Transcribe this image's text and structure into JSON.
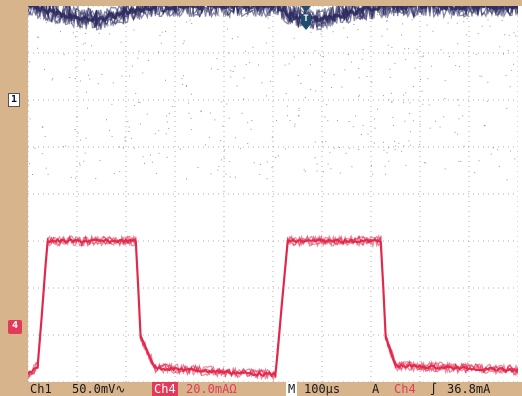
{
  "status": {
    "ch1_label": "Ch1",
    "ch1_scale": "50.0mV∿",
    "ch4_label": "Ch4",
    "ch4_scale": "20.0mAΩ",
    "timebase_label": "M",
    "timebase_value": "100µs",
    "trigger_mode": "A",
    "trigger_source": "Ch4",
    "trigger_edge": "∫",
    "trigger_level": "36.8mA"
  },
  "markers": {
    "ch1": "1",
    "ch4": "4",
    "trigger_position": "T"
  },
  "colors": {
    "ch1": "#2b2a5e",
    "ch4": "#e0264a",
    "bezel": "#d8b48c",
    "grid": "#8a8a8a"
  },
  "chart_data": {
    "type": "line",
    "grid": true,
    "divisions": {
      "horizontal": 10,
      "vertical": 8
    },
    "x_unit_per_div": "100µs",
    "series": [
      {
        "name": "Ch1",
        "units_per_div": "50.0mV",
        "x_div": [
          0,
          0.85,
          1.4,
          1.95,
          2.6,
          5.1,
          5.35,
          5.9,
          6.5,
          7.3,
          10
        ],
        "y_div": [
          2.2,
          2.0,
          1.9,
          2.05,
          2.2,
          2.2,
          2.0,
          1.9,
          2.05,
          2.2,
          2.2
        ]
      },
      {
        "name": "Ch4",
        "units_per_div": "20.0mA",
        "x_div": [
          0,
          0.2,
          0.4,
          2.2,
          2.3,
          2.6,
          5.05,
          5.3,
          7.2,
          7.3,
          7.5,
          10
        ],
        "y_div": [
          0,
          0.2,
          2.85,
          2.85,
          0.8,
          0.15,
          0.0,
          2.85,
          2.85,
          0.8,
          0.2,
          0.1
        ]
      }
    ]
  }
}
